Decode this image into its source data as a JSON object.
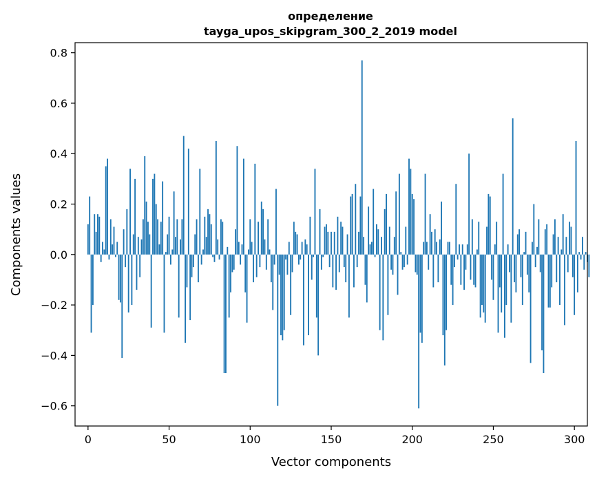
{
  "chart_data": {
    "type": "bar",
    "title": "определение",
    "subtitle": "tayga_upos_skipgram_300_2_2019 model",
    "xlabel": "Vector components",
    "ylabel": "Components values",
    "xlim": [
      -8,
      308
    ],
    "ylim": [
      -0.68,
      0.84
    ],
    "x_ticks": [
      0,
      50,
      100,
      150,
      200,
      250,
      300
    ],
    "x_tick_labels": [
      "0",
      "50",
      "100",
      "150",
      "200",
      "250",
      "300"
    ],
    "y_ticks": [
      -0.6,
      -0.4,
      -0.2,
      0.0,
      0.2,
      0.4,
      0.6,
      0.8
    ],
    "y_tick_labels": [
      "−0.6",
      "−0.4",
      "−0.2",
      "0.0",
      "0.2",
      "0.4",
      "0.6",
      "0.8"
    ],
    "bar_color": "#1f77b4",
    "values": [
      0.12,
      0.23,
      -0.31,
      -0.2,
      0.16,
      0.09,
      0.16,
      0.15,
      -0.03,
      0.05,
      0.02,
      0.35,
      0.38,
      -0.02,
      0.14,
      0.04,
      0.11,
      -0.01,
      0.05,
      -0.18,
      -0.19,
      -0.41,
      0.1,
      -0.05,
      0.18,
      -0.23,
      0.34,
      -0.2,
      0.08,
      0.3,
      -0.14,
      0.07,
      -0.09,
      0.06,
      0.14,
      0.39,
      0.21,
      0.13,
      0.08,
      -0.29,
      0.3,
      0.32,
      0.2,
      0.14,
      0.04,
      0.13,
      0.29,
      -0.31,
      0.01,
      0.08,
      0.15,
      -0.04,
      0.02,
      0.25,
      0.07,
      0.14,
      -0.25,
      0.06,
      0.14,
      0.47,
      -0.35,
      -0.13,
      0.42,
      -0.26,
      -0.09,
      -0.05,
      0.08,
      0.14,
      -0.11,
      0.34,
      -0.04,
      0.02,
      0.15,
      0.07,
      0.18,
      0.16,
      0.12,
      -0.01,
      -0.03,
      0.45,
      0.06,
      -0.02,
      0.14,
      0.13,
      -0.47,
      -0.47,
      0.03,
      -0.25,
      -0.15,
      -0.07,
      -0.06,
      0.1,
      0.43,
      0.05,
      -0.04,
      0.04,
      0.38,
      -0.15,
      -0.27,
      0.02,
      0.14,
      0.05,
      -0.11,
      0.36,
      -0.09,
      0.13,
      -0.05,
      0.21,
      0.18,
      0.06,
      -0.06,
      0.14,
      0.02,
      -0.11,
      -0.22,
      -0.04,
      0.26,
      -0.6,
      -0.08,
      -0.32,
      -0.34,
      -0.3,
      -0.02,
      -0.08,
      0.05,
      -0.24,
      -0.07,
      0.13,
      0.09,
      0.08,
      -0.04,
      -0.02,
      0.05,
      -0.36,
      0.06,
      0.04,
      -0.32,
      0.15,
      -0.1,
      -0.01,
      0.34,
      -0.25,
      -0.4,
      0.18,
      -0.06,
      -0.01,
      0.11,
      0.12,
      0.09,
      -0.05,
      0.09,
      -0.13,
      0.09,
      -0.14,
      0.15,
      -0.07,
      0.13,
      0.11,
      -0.05,
      -0.11,
      0.08,
      -0.25,
      0.23,
      0.24,
      -0.13,
      0.28,
      -0.05,
      0.09,
      0.23,
      0.77,
      0.07,
      -0.12,
      -0.19,
      0.19,
      0.04,
      0.05,
      0.26,
      -0.01,
      0.12,
      0.1,
      -0.3,
      0.07,
      -0.34,
      0.18,
      0.24,
      -0.24,
      0.11,
      -0.06,
      -0.08,
      0.07,
      0.25,
      -0.16,
      0.32,
      0.01,
      -0.06,
      -0.05,
      0.11,
      -0.04,
      0.38,
      0.34,
      0.24,
      0.22,
      -0.07,
      -0.08,
      -0.61,
      -0.31,
      -0.35,
      0.05,
      0.32,
      0.05,
      -0.06,
      0.16,
      0.09,
      -0.13,
      0.1,
      0.05,
      -0.11,
      0.06,
      0.21,
      -0.32,
      -0.44,
      -0.3,
      0.05,
      0.05,
      -0.12,
      -0.2,
      -0.05,
      0.28,
      -0.02,
      0.04,
      -0.12,
      0.04,
      -0.14,
      -0.06,
      0.04,
      0.4,
      -0.1,
      0.14,
      -0.12,
      -0.13,
      0.02,
      0.13,
      -0.25,
      -0.2,
      -0.23,
      -0.27,
      0.11,
      0.24,
      0.23,
      -0.1,
      -0.18,
      0.04,
      0.13,
      -0.31,
      -0.13,
      -0.23,
      0.32,
      -0.33,
      -0.2,
      0.04,
      -0.07,
      -0.27,
      0.54,
      -0.11,
      -0.15,
      0.08,
      0.1,
      -0.09,
      -0.2,
      0.01,
      0.09,
      -0.08,
      -0.15,
      -0.43,
      0.05,
      0.2,
      -0.05,
      0.03,
      0.14,
      -0.07,
      -0.38,
      -0.47,
      0.1,
      0.12,
      -0.21,
      -0.21,
      -0.13,
      0.08,
      0.14,
      -0.11,
      0.07,
      -0.2,
      0.02,
      0.16,
      -0.28,
      0.07,
      -0.07,
      0.13,
      0.11,
      -0.09,
      -0.24,
      0.45,
      -0.15,
      0.01,
      -0.02,
      0.07,
      -0.06,
      0.01,
      -0.03,
      -0.09
    ]
  }
}
